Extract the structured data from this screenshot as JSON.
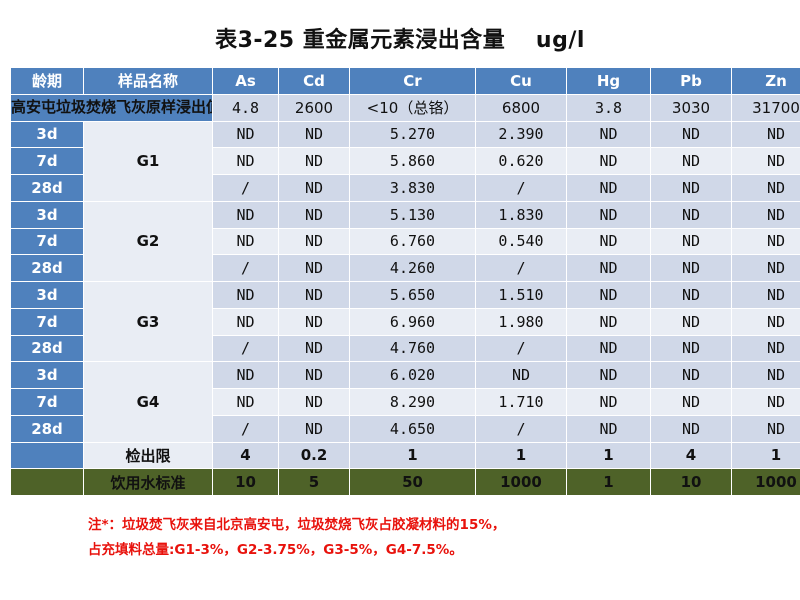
{
  "title": "表3-25 重金属元素浸出含量　 ug/l",
  "header": {
    "age_label": "龄期",
    "name_label": "样品名称",
    "columns": [
      "As",
      "Cd",
      "Cr",
      "Cu",
      "Hg",
      "Pb",
      "Zn"
    ]
  },
  "original": {
    "label": "高安屯垃圾焚烧飞灰原样浸出值",
    "values": [
      "4.8",
      "2600",
      "<10（总铬）",
      "6800",
      "3.8",
      "3030",
      "31700"
    ]
  },
  "groups": [
    {
      "name": "G1",
      "rows": [
        {
          "age": "3d",
          "values": [
            "ND",
            "ND",
            "5.270",
            "2.390",
            "ND",
            "ND",
            "ND"
          ]
        },
        {
          "age": "7d",
          "values": [
            "ND",
            "ND",
            "5.860",
            "0.620",
            "ND",
            "ND",
            "ND"
          ]
        },
        {
          "age": "28d",
          "values": [
            "/",
            "ND",
            "3.830",
            "/",
            "ND",
            "ND",
            "ND"
          ]
        }
      ]
    },
    {
      "name": "G2",
      "rows": [
        {
          "age": "3d",
          "values": [
            "ND",
            "ND",
            "5.130",
            "1.830",
            "ND",
            "ND",
            "ND"
          ]
        },
        {
          "age": "7d",
          "values": [
            "ND",
            "ND",
            "6.760",
            "0.540",
            "ND",
            "ND",
            "ND"
          ]
        },
        {
          "age": "28d",
          "values": [
            "/",
            "ND",
            "4.260",
            "/",
            "ND",
            "ND",
            "ND"
          ]
        }
      ]
    },
    {
      "name": "G3",
      "rows": [
        {
          "age": "3d",
          "values": [
            "ND",
            "ND",
            "5.650",
            "1.510",
            "ND",
            "ND",
            "ND"
          ]
        },
        {
          "age": "7d",
          "values": [
            "ND",
            "ND",
            "6.960",
            "1.980",
            "ND",
            "ND",
            "ND"
          ]
        },
        {
          "age": "28d",
          "values": [
            "/",
            "ND",
            "4.760",
            "/",
            "ND",
            "ND",
            "ND"
          ]
        }
      ]
    },
    {
      "name": "G4",
      "rows": [
        {
          "age": "3d",
          "values": [
            "ND",
            "ND",
            "6.020",
            "ND",
            "ND",
            "ND",
            "ND"
          ]
        },
        {
          "age": "7d",
          "values": [
            "ND",
            "ND",
            "8.290",
            "1.710",
            "ND",
            "ND",
            "ND"
          ]
        },
        {
          "age": "28d",
          "values": [
            "/",
            "ND",
            "4.650",
            "/",
            "ND",
            "ND",
            "ND"
          ]
        }
      ]
    }
  ],
  "limit": {
    "label": "检出限",
    "values": [
      "4",
      "0.2",
      "1",
      "1",
      "1",
      "4",
      "1"
    ]
  },
  "standard": {
    "label": "饮用水标准",
    "values": [
      "10",
      "5",
      "50",
      "1000",
      "1",
      "10",
      "1000"
    ]
  },
  "note": {
    "line1": "注*：垃圾焚飞灰来自北京高安屯，垃圾焚烧飞灰占胶凝材料的15%，",
    "line2": "占充填料总量:G1-3%，G2-3.75%，G3-5%，G4-7.5%。"
  },
  "colors": {
    "header_blue": "#4f81bd",
    "row_light": "#d0d8e8",
    "row_lighter": "#e9edf4",
    "standard_green": "#4e6228",
    "standard_text": "#ffff00",
    "note_red": "#e8120c"
  }
}
